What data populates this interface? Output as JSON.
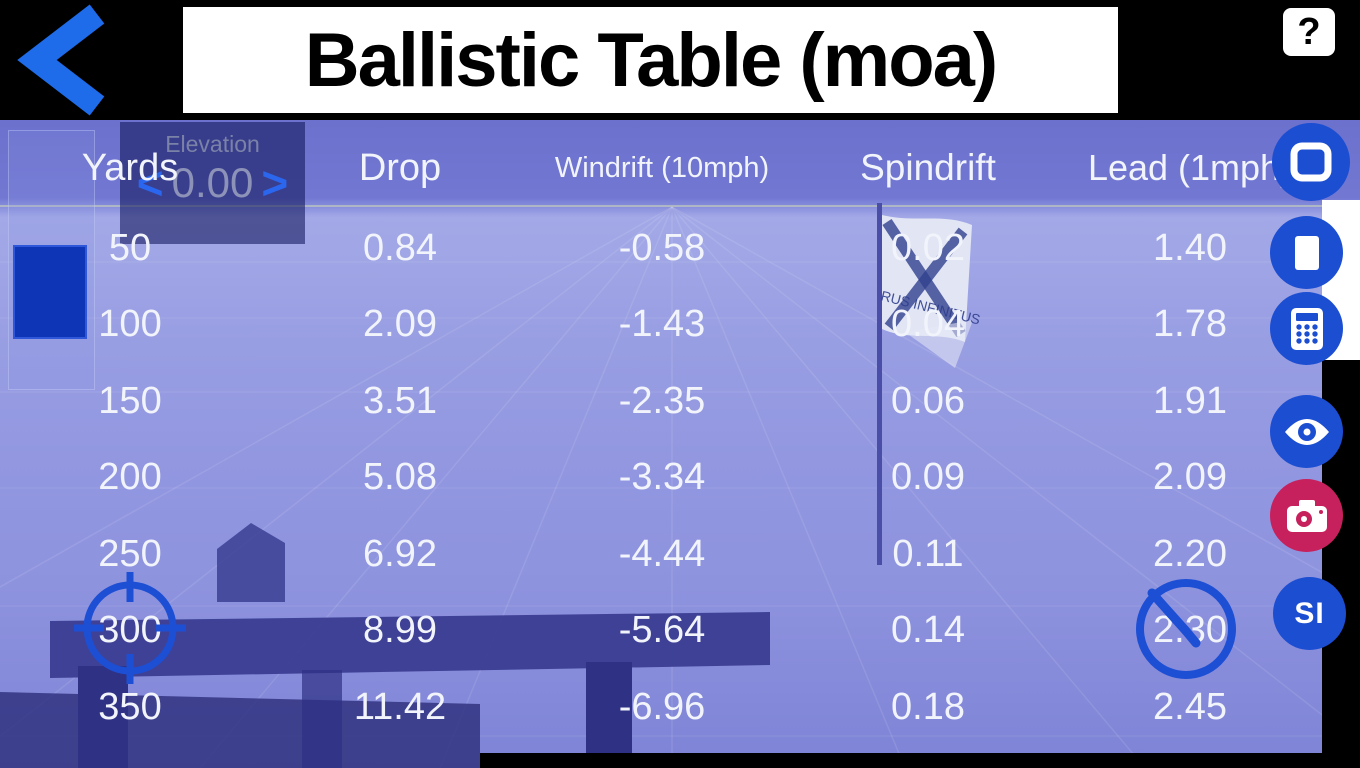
{
  "header": {
    "title": "Ballistic Table (moa)",
    "help_label": "?"
  },
  "elevation": {
    "label": "Elevation",
    "value": "0.00",
    "decrease": "<",
    "increase": ">"
  },
  "table": {
    "columns": [
      "Yards",
      "Drop",
      "Windrift (10mph)",
      "Spindrift",
      "Lead (1mph)"
    ],
    "rows": [
      [
        "50",
        "0.84",
        "-0.58",
        "0.02",
        "1.40"
      ],
      [
        "100",
        "2.09",
        "-1.43",
        "0.04",
        "1.78"
      ],
      [
        "150",
        "3.51",
        "-2.35",
        "0.06",
        "1.91"
      ],
      [
        "200",
        "5.08",
        "-3.34",
        "0.09",
        "2.09"
      ],
      [
        "250",
        "6.92",
        "-4.44",
        "0.11",
        "2.20"
      ],
      [
        "300",
        "8.99",
        "-5.64",
        "0.14",
        "2.30"
      ],
      [
        "350",
        "11.42",
        "-6.96",
        "0.18",
        "2.45"
      ]
    ]
  },
  "sidebar": {
    "buttons": [
      {
        "id": "display",
        "icon": "monitor-icon"
      },
      {
        "id": "page",
        "icon": "page-icon"
      },
      {
        "id": "calculator",
        "icon": "calculator-icon"
      },
      {
        "id": "view",
        "icon": "eye-icon"
      },
      {
        "id": "camera",
        "icon": "camera-icon"
      },
      {
        "id": "sim",
        "label": "SI"
      }
    ]
  },
  "scene": {
    "flag_text": "RUS INFINITUS"
  },
  "colors": {
    "accent_blue": "#1c4ed2",
    "back_arrow_blue": "#1e6cea",
    "camera_red": "#c7215d",
    "header_bg": "#000000",
    "title_panel": "#ffffff",
    "table_text": "#f2f4fb"
  }
}
